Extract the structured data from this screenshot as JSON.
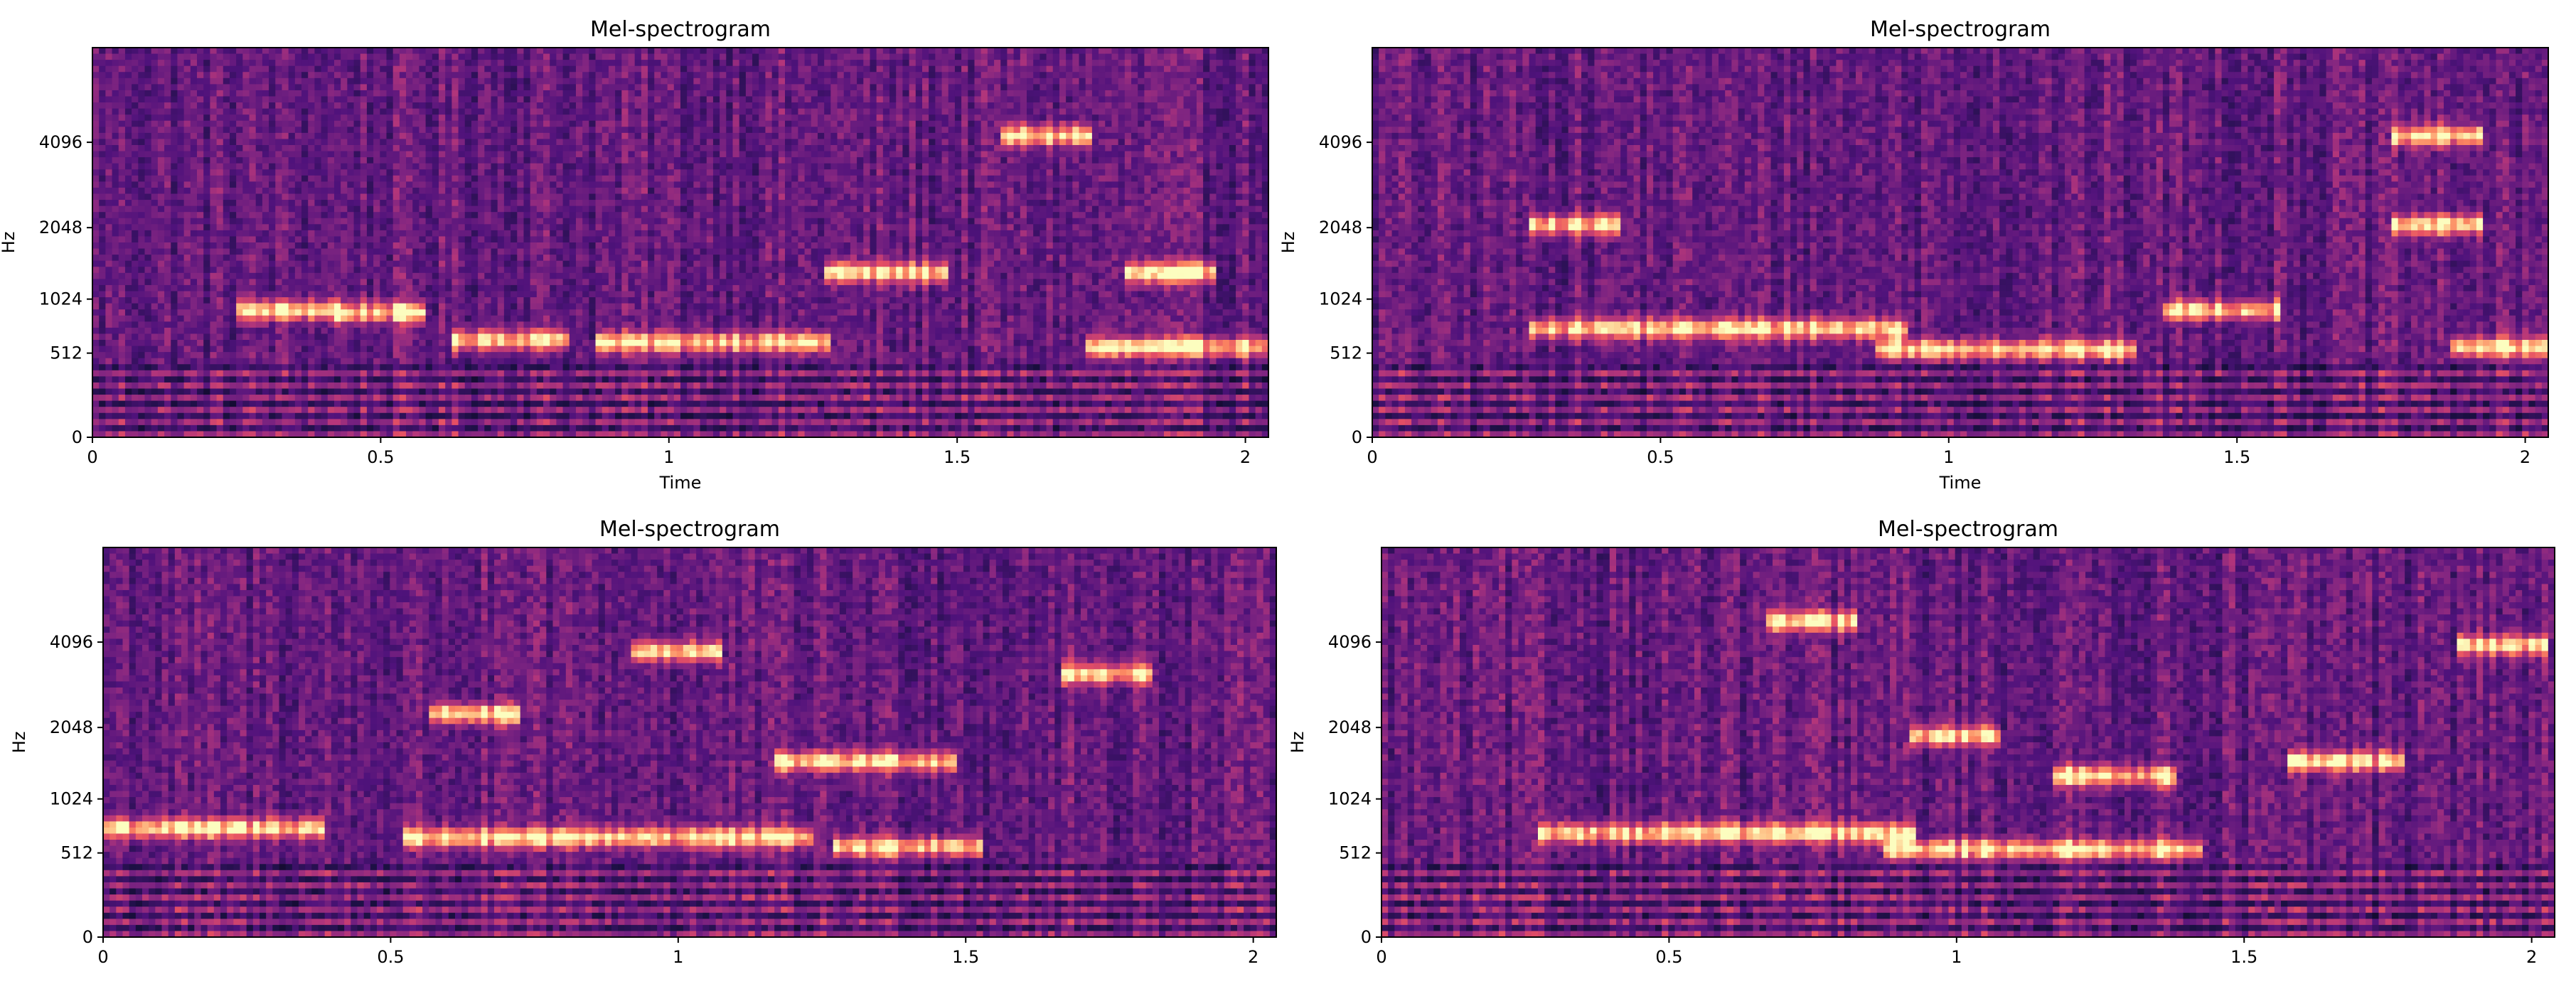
{
  "chart_data": [
    {
      "type": "heatmap",
      "title": "Mel-spectrogram",
      "xlabel": "Time",
      "ylabel": "Hz",
      "x_ticks": [
        "0",
        "0.5",
        "1",
        "1.5",
        "2"
      ],
      "y_ticks": [
        "0",
        "512",
        "1024",
        "2048",
        "4096"
      ],
      "xlim": [
        0,
        2.04
      ],
      "ylim": [
        0,
        8192
      ],
      "y_scale": "mel",
      "colormap": "magma",
      "grid": false,
      "bright_bands": [
        {
          "t_start": 0.28,
          "t_end": 0.4,
          "hz": 900
        },
        {
          "t_start": 0.45,
          "t_end": 0.55,
          "hz": 880
        },
        {
          "t_start": 0.65,
          "t_end": 0.8,
          "hz": 620
        },
        {
          "t_start": 0.9,
          "t_end": 1.25,
          "hz": 600
        },
        {
          "t_start": 1.3,
          "t_end": 1.45,
          "hz": 1350
        },
        {
          "t_start": 1.6,
          "t_end": 1.7,
          "hz": 4300
        },
        {
          "t_start": 1.82,
          "t_end": 1.92,
          "hz": 1350
        },
        {
          "t_start": 1.75,
          "t_end": 2.04,
          "hz": 560
        }
      ]
    },
    {
      "type": "heatmap",
      "title": "Mel-spectrogram",
      "xlabel": "Time",
      "ylabel": "Hz",
      "x_ticks": [
        "0",
        "0.5",
        "1",
        "1.5",
        "2"
      ],
      "y_ticks": [
        "0",
        "512",
        "1024",
        "2048",
        "4096"
      ],
      "xlim": [
        0,
        2.04
      ],
      "ylim": [
        0,
        8192
      ],
      "y_scale": "mel",
      "colormap": "magma",
      "grid": false,
      "bright_bands": [
        {
          "t_start": 0.3,
          "t_end": 0.9,
          "hz": 720
        },
        {
          "t_start": 0.9,
          "t_end": 1.3,
          "hz": 540
        },
        {
          "t_start": 0.3,
          "t_end": 0.4,
          "hz": 2100
        },
        {
          "t_start": 1.4,
          "t_end": 1.55,
          "hz": 900
        },
        {
          "t_start": 1.8,
          "t_end": 1.9,
          "hz": 4300
        },
        {
          "t_start": 1.8,
          "t_end": 1.9,
          "hz": 2100
        },
        {
          "t_start": 1.9,
          "t_end": 2.04,
          "hz": 560
        }
      ]
    },
    {
      "type": "heatmap",
      "title": "Mel-spectrogram",
      "xlabel": "",
      "ylabel": "Hz",
      "x_ticks": [
        "0",
        "0.5",
        "1",
        "1.5",
        "2"
      ],
      "y_ticks": [
        "0",
        "512",
        "1024",
        "2048",
        "4096"
      ],
      "xlim": [
        0,
        2.04
      ],
      "ylim": [
        0,
        8192
      ],
      "y_scale": "mel",
      "colormap": "magma",
      "grid": false,
      "bright_bands": [
        {
          "t_start": 0.0,
          "t_end": 0.35,
          "hz": 720
        },
        {
          "t_start": 0.55,
          "t_end": 1.2,
          "hz": 640
        },
        {
          "t_start": 0.6,
          "t_end": 0.7,
          "hz": 2300
        },
        {
          "t_start": 0.95,
          "t_end": 1.05,
          "hz": 3800
        },
        {
          "t_start": 1.2,
          "t_end": 1.45,
          "hz": 1500
        },
        {
          "t_start": 1.3,
          "t_end": 1.5,
          "hz": 560
        },
        {
          "t_start": 1.7,
          "t_end": 1.8,
          "hz": 3200
        }
      ]
    },
    {
      "type": "heatmap",
      "title": "Mel-spectrogram",
      "xlabel": "",
      "ylabel": "Hz",
      "x_ticks": [
        "0",
        "0.5",
        "1",
        "1.5",
        "2"
      ],
      "y_ticks": [
        "0",
        "512",
        "1024",
        "2048",
        "4096"
      ],
      "xlim": [
        0,
        2.04
      ],
      "ylim": [
        0,
        8192
      ],
      "y_scale": "mel",
      "colormap": "magma",
      "grid": false,
      "bright_bands": [
        {
          "t_start": 0.3,
          "t_end": 0.9,
          "hz": 680
        },
        {
          "t_start": 0.9,
          "t_end": 1.4,
          "hz": 540
        },
        {
          "t_start": 0.7,
          "t_end": 0.8,
          "hz": 4800
        },
        {
          "t_start": 0.95,
          "t_end": 1.05,
          "hz": 1900
        },
        {
          "t_start": 1.2,
          "t_end": 1.35,
          "hz": 1300
        },
        {
          "t_start": 1.6,
          "t_end": 1.75,
          "hz": 1500
        },
        {
          "t_start": 1.9,
          "t_end": 2.0,
          "hz": 4000
        }
      ]
    }
  ]
}
